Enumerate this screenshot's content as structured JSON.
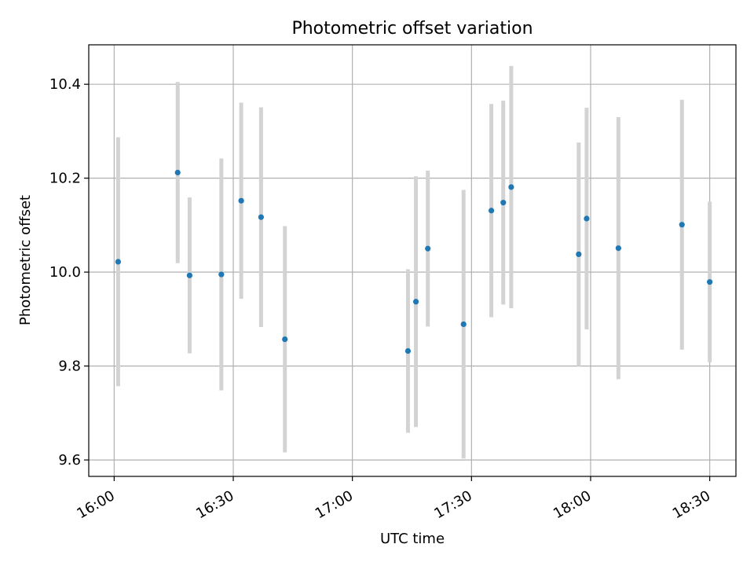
{
  "chart_data": {
    "type": "scatter",
    "title": "Photometric offset variation",
    "xlabel": "UTC time",
    "ylabel": "Photometric offset",
    "x_tick_labels": [
      "16:00",
      "16:30",
      "17:00",
      "17:30",
      "18:00",
      "18:30"
    ],
    "x_tick_minutes": [
      960,
      990,
      1020,
      1050,
      1080,
      1110
    ],
    "y_ticks": [
      9.6,
      9.8,
      10.0,
      10.2,
      10.4
    ],
    "y_tick_labels": [
      "9.6",
      "9.8",
      "10.0",
      "10.2",
      "10.4"
    ],
    "xlim_minutes": [
      953.6,
      1116.6
    ],
    "ylim": [
      9.565,
      10.484
    ],
    "grid": true,
    "marker_color": "#1f77b4",
    "errorbar_color": "#d3d3d3",
    "series": [
      {
        "points": [
          {
            "x": "16:01",
            "y": 10.022,
            "yerr": 0.265
          },
          {
            "x": "16:16",
            "y": 10.212,
            "yerr": 0.193
          },
          {
            "x": "16:19",
            "y": 9.993,
            "yerr": 0.166
          },
          {
            "x": "16:27",
            "y": 9.995,
            "yerr": 0.247
          },
          {
            "x": "16:32",
            "y": 10.152,
            "yerr": 0.209
          },
          {
            "x": "16:37",
            "y": 10.117,
            "yerr": 0.234
          },
          {
            "x": "16:43",
            "y": 9.857,
            "yerr": 0.241
          },
          {
            "x": "17:14",
            "y": 9.832,
            "yerr": 0.174
          },
          {
            "x": "17:16",
            "y": 9.937,
            "yerr": 0.267
          },
          {
            "x": "17:19",
            "y": 10.05,
            "yerr": 0.166
          },
          {
            "x": "17:28",
            "y": 9.889,
            "yerr": 0.286
          },
          {
            "x": "17:35",
            "y": 10.131,
            "yerr": 0.227
          },
          {
            "x": "17:38",
            "y": 10.148,
            "yerr": 0.217
          },
          {
            "x": "17:40",
            "y": 10.181,
            "yerr": 0.258
          },
          {
            "x": "17:57",
            "y": 10.038,
            "yerr": 0.238
          },
          {
            "x": "17:59",
            "y": 10.114,
            "yerr": 0.236
          },
          {
            "x": "18:07",
            "y": 10.051,
            "yerr": 0.279
          },
          {
            "x": "18:23",
            "y": 10.101,
            "yerr": 0.266
          },
          {
            "x": "18:30",
            "y": 9.979,
            "yerr": 0.171
          }
        ]
      }
    ]
  }
}
